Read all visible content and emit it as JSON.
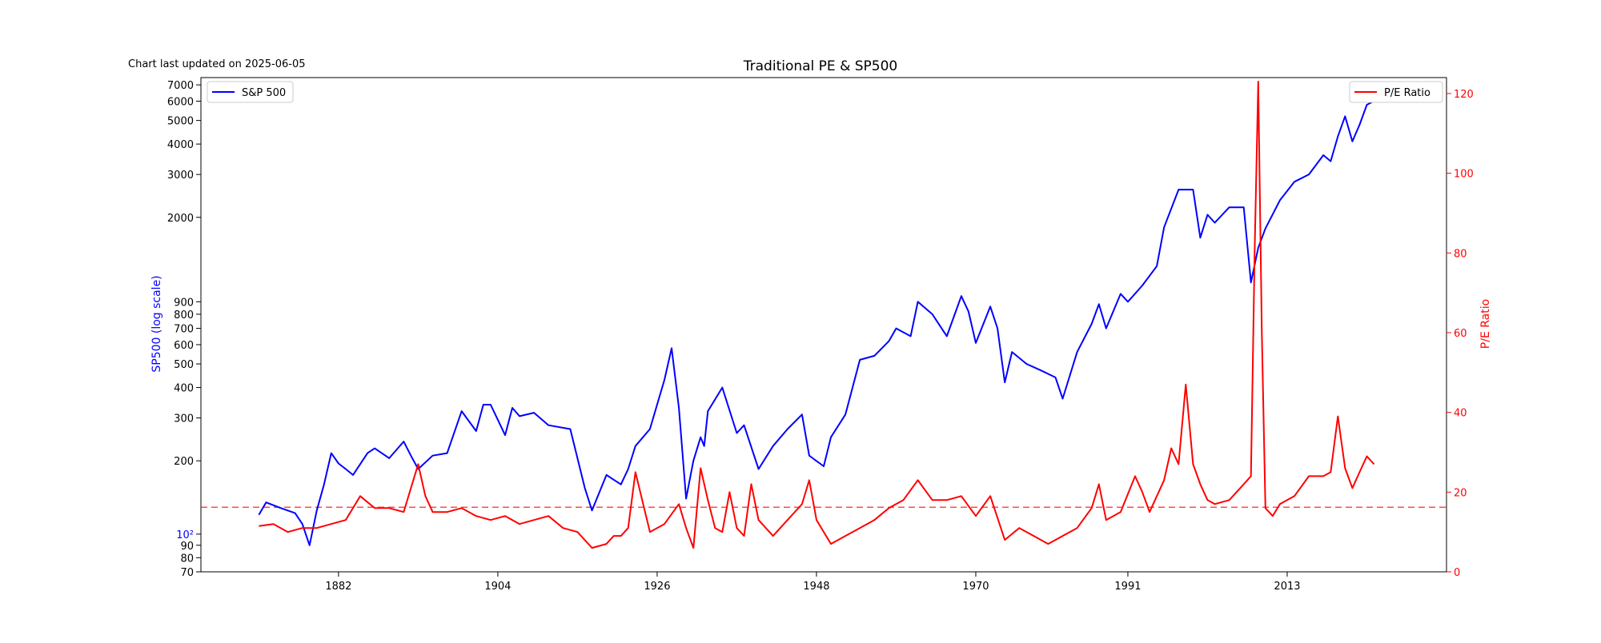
{
  "updated_note": "Chart last updated on 2025-06-05",
  "chart_data": {
    "type": "line",
    "title": "Traditional PE & SP500",
    "xlabel": "",
    "x_ticks": [
      "1882",
      "1904",
      "1926",
      "1948",
      "1970",
      "1991",
      "2013"
    ],
    "xlim": [
      1863,
      2035
    ],
    "left_axis": {
      "label": "SP500 (log scale)",
      "scale": "log",
      "ylim": [
        70,
        7500
      ],
      "ticks": [
        "70",
        "80",
        "90",
        "10²",
        "200",
        "300",
        "400",
        "500",
        "600",
        "700",
        "800",
        "900",
        "2000",
        "3000",
        "4000",
        "5000",
        "6000",
        "7000"
      ],
      "tick_values": [
        70,
        80,
        90,
        100,
        200,
        300,
        400,
        500,
        600,
        700,
        800,
        900,
        2000,
        3000,
        4000,
        5000,
        6000,
        7000
      ],
      "color": "#0000ff"
    },
    "right_axis": {
      "label": "P/E Ratio",
      "scale": "linear",
      "ylim": [
        0,
        124
      ],
      "ticks": [
        "0",
        "20",
        "40",
        "60",
        "80",
        "100",
        "120"
      ],
      "tick_values": [
        0,
        20,
        40,
        60,
        80,
        100,
        120
      ],
      "color": "#ff0000"
    },
    "series": [
      {
        "name": "S&P 500",
        "axis": "left",
        "color": "#0000ff",
        "legend": "top-left",
        "x": [
          1871,
          1872,
          1874,
          1876,
          1877,
          1878,
          1879,
          1880,
          1881,
          1882,
          1883,
          1884,
          1886,
          1887,
          1889,
          1891,
          1892,
          1893,
          1895,
          1897,
          1899,
          1901,
          1902,
          1903,
          1905,
          1906,
          1907,
          1909,
          1911,
          1914,
          1916,
          1917,
          1919,
          1921,
          1922,
          1923,
          1925,
          1927,
          1928,
          1929,
          1930,
          1931,
          1932,
          1932.5,
          1933,
          1935,
          1937,
          1938,
          1940,
          1942,
          1944,
          1946,
          1947,
          1949,
          1950,
          1952,
          1954,
          1956,
          1958,
          1959,
          1961,
          1962,
          1964,
          1966,
          1968,
          1969,
          1970,
          1972,
          1973,
          1974,
          1975,
          1977,
          1979,
          1981,
          1982,
          1984,
          1986,
          1987,
          1988,
          1990,
          1991,
          1993,
          1995,
          1996,
          1998,
          2000,
          2001,
          2002,
          2003,
          2005,
          2007,
          2008,
          2009,
          2010,
          2012,
          2014,
          2016,
          2018,
          2019,
          2020,
          2021,
          2022,
          2023,
          2024,
          2025
        ],
        "values": [
          120,
          135,
          128,
          122,
          110,
          90,
          125,
          160,
          215,
          195,
          185,
          175,
          215,
          225,
          205,
          240,
          210,
          185,
          210,
          215,
          320,
          265,
          340,
          340,
          255,
          330,
          305,
          315,
          280,
          270,
          155,
          125,
          175,
          160,
          185,
          230,
          270,
          430,
          580,
          330,
          140,
          200,
          250,
          230,
          320,
          400,
          260,
          280,
          185,
          230,
          270,
          310,
          210,
          190,
          250,
          310,
          520,
          540,
          620,
          700,
          650,
          900,
          800,
          650,
          950,
          820,
          610,
          860,
          700,
          420,
          560,
          500,
          470,
          440,
          360,
          560,
          730,
          880,
          700,
          970,
          900,
          1050,
          1260,
          1820,
          2600,
          2600,
          1650,
          2050,
          1900,
          2200,
          2200,
          1080,
          1500,
          1800,
          2350,
          2800,
          3000,
          3600,
          3400,
          4300,
          5200,
          4100,
          4800,
          5800,
          6000
        ]
      },
      {
        "name": "P/E Ratio",
        "axis": "right",
        "color": "#ff0000",
        "legend": "top-right",
        "x": [
          1871,
          1873,
          1875,
          1877,
          1879,
          1881,
          1883,
          1885,
          1887,
          1889,
          1891,
          1893,
          1894,
          1895,
          1897,
          1899,
          1901,
          1903,
          1905,
          1907,
          1909,
          1911,
          1913,
          1915,
          1917,
          1919,
          1920,
          1921,
          1922,
          1923,
          1925,
          1927,
          1929,
          1930,
          1931,
          1932,
          1933,
          1934,
          1935,
          1936,
          1937,
          1938,
          1939,
          1940,
          1942,
          1944,
          1946,
          1947,
          1948,
          1950,
          1952,
          1954,
          1956,
          1958,
          1960,
          1962,
          1964,
          1966,
          1968,
          1970,
          1972,
          1974,
          1976,
          1978,
          1980,
          1982,
          1984,
          1986,
          1987,
          1988,
          1990,
          1992,
          1993,
          1994,
          1996,
          1997,
          1998,
          1999,
          2000,
          2001,
          2002,
          2003,
          2005,
          2007,
          2008,
          2008.5,
          2009,
          2009.5,
          2010,
          2011,
          2012,
          2014,
          2016,
          2018,
          2019,
          2020,
          2021,
          2022,
          2023,
          2024,
          2025
        ],
        "values": [
          11.5,
          12,
          10,
          11,
          11,
          12,
          13,
          19,
          16,
          16,
          15,
          27,
          19,
          15,
          15,
          16,
          14,
          13,
          14,
          12,
          13,
          14,
          11,
          10,
          6,
          7,
          9,
          9,
          11,
          25,
          10,
          12,
          17,
          11,
          6,
          26,
          18,
          11,
          10,
          20,
          11,
          9,
          22,
          13,
          9,
          13,
          17,
          23,
          13,
          7,
          9,
          11,
          13,
          16,
          18,
          23,
          18,
          18,
          19,
          14,
          19,
          8,
          11,
          9,
          7,
          9,
          11,
          16,
          22,
          13,
          15,
          24,
          20,
          15,
          23,
          31,
          27,
          47,
          27,
          22,
          18,
          17,
          18,
          22,
          24,
          80,
          123,
          60,
          16,
          14,
          17,
          19,
          24,
          24,
          25,
          39,
          26,
          21,
          25,
          29,
          27
        ]
      }
    ],
    "reference_line": {
      "value": 16.2,
      "axis": "right",
      "color": "#ff0000",
      "style": "dashed"
    },
    "grid": false
  }
}
